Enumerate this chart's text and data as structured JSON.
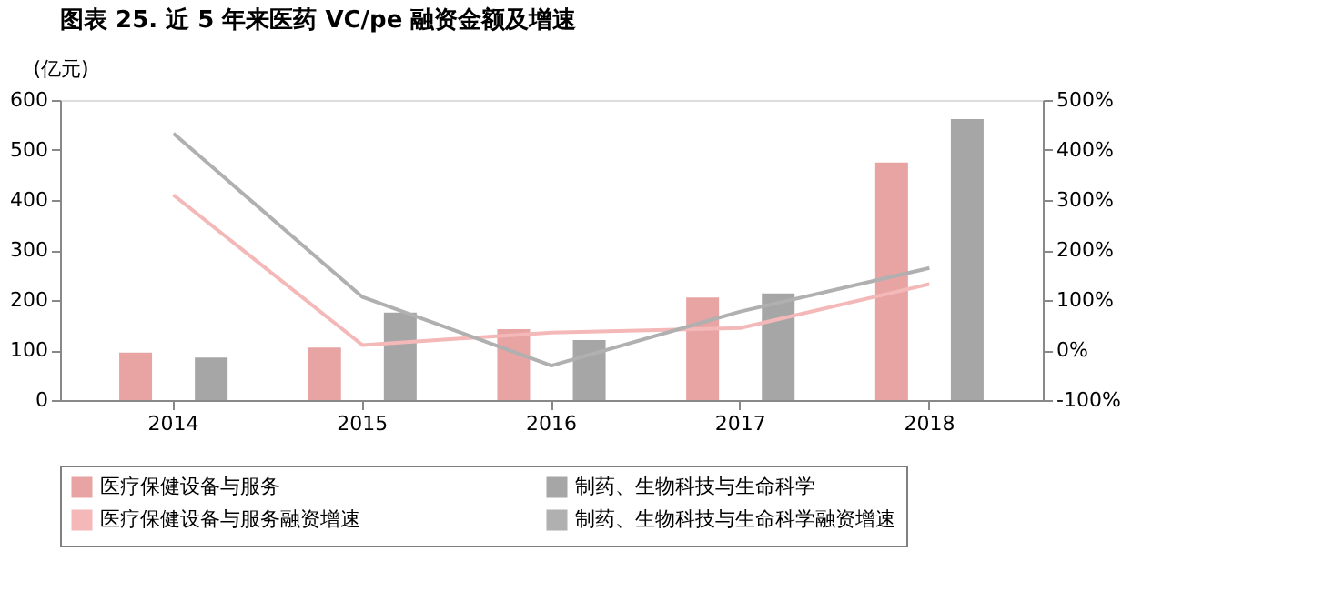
{
  "chart_data": {
    "type": "bar",
    "title": "图表 25. 近 5 年来医药 VC/pe 融资金额及增速",
    "ylabel": "(亿元)",
    "categories": [
      "2014",
      "2015",
      "2016",
      "2017",
      "2018"
    ],
    "series": [
      {
        "name": "医疗保健设备与服务",
        "color": "#e8a3a3",
        "values": [
          95,
          105,
          142,
          205,
          475
        ]
      },
      {
        "name": "制药、生物科技与生命科学",
        "color": "#a6a6a6",
        "values": [
          85,
          175,
          120,
          213,
          562
        ]
      },
      {
        "name": "医疗保健设备与服务融资增速",
        "type": "line",
        "axis": "y2",
        "color": "#f4b8b8",
        "values": [
          310,
          10,
          35,
          44,
          132
        ]
      },
      {
        "name": "制药、生物科技与生命科学融资增速",
        "type": "line",
        "axis": "y2",
        "color": "#b0b0b0",
        "values": [
          433,
          106,
          -31,
          77,
          164
        ]
      }
    ],
    "ylim": [
      0,
      600
    ],
    "yticks": [
      0,
      100,
      200,
      300,
      400,
      500,
      600
    ],
    "y2lim": [
      -100,
      500
    ],
    "y2ticks": [
      {
        "value": -100,
        "label": "-100%"
      },
      {
        "value": 0,
        "label": "0%"
      },
      {
        "value": 100,
        "label": "100%"
      },
      {
        "value": 200,
        "label": "200%"
      },
      {
        "value": 300,
        "label": "300%"
      },
      {
        "value": 400,
        "label": "400%"
      },
      {
        "value": 500,
        "label": "500%"
      }
    ],
    "grid": false,
    "legend": "bottom"
  }
}
